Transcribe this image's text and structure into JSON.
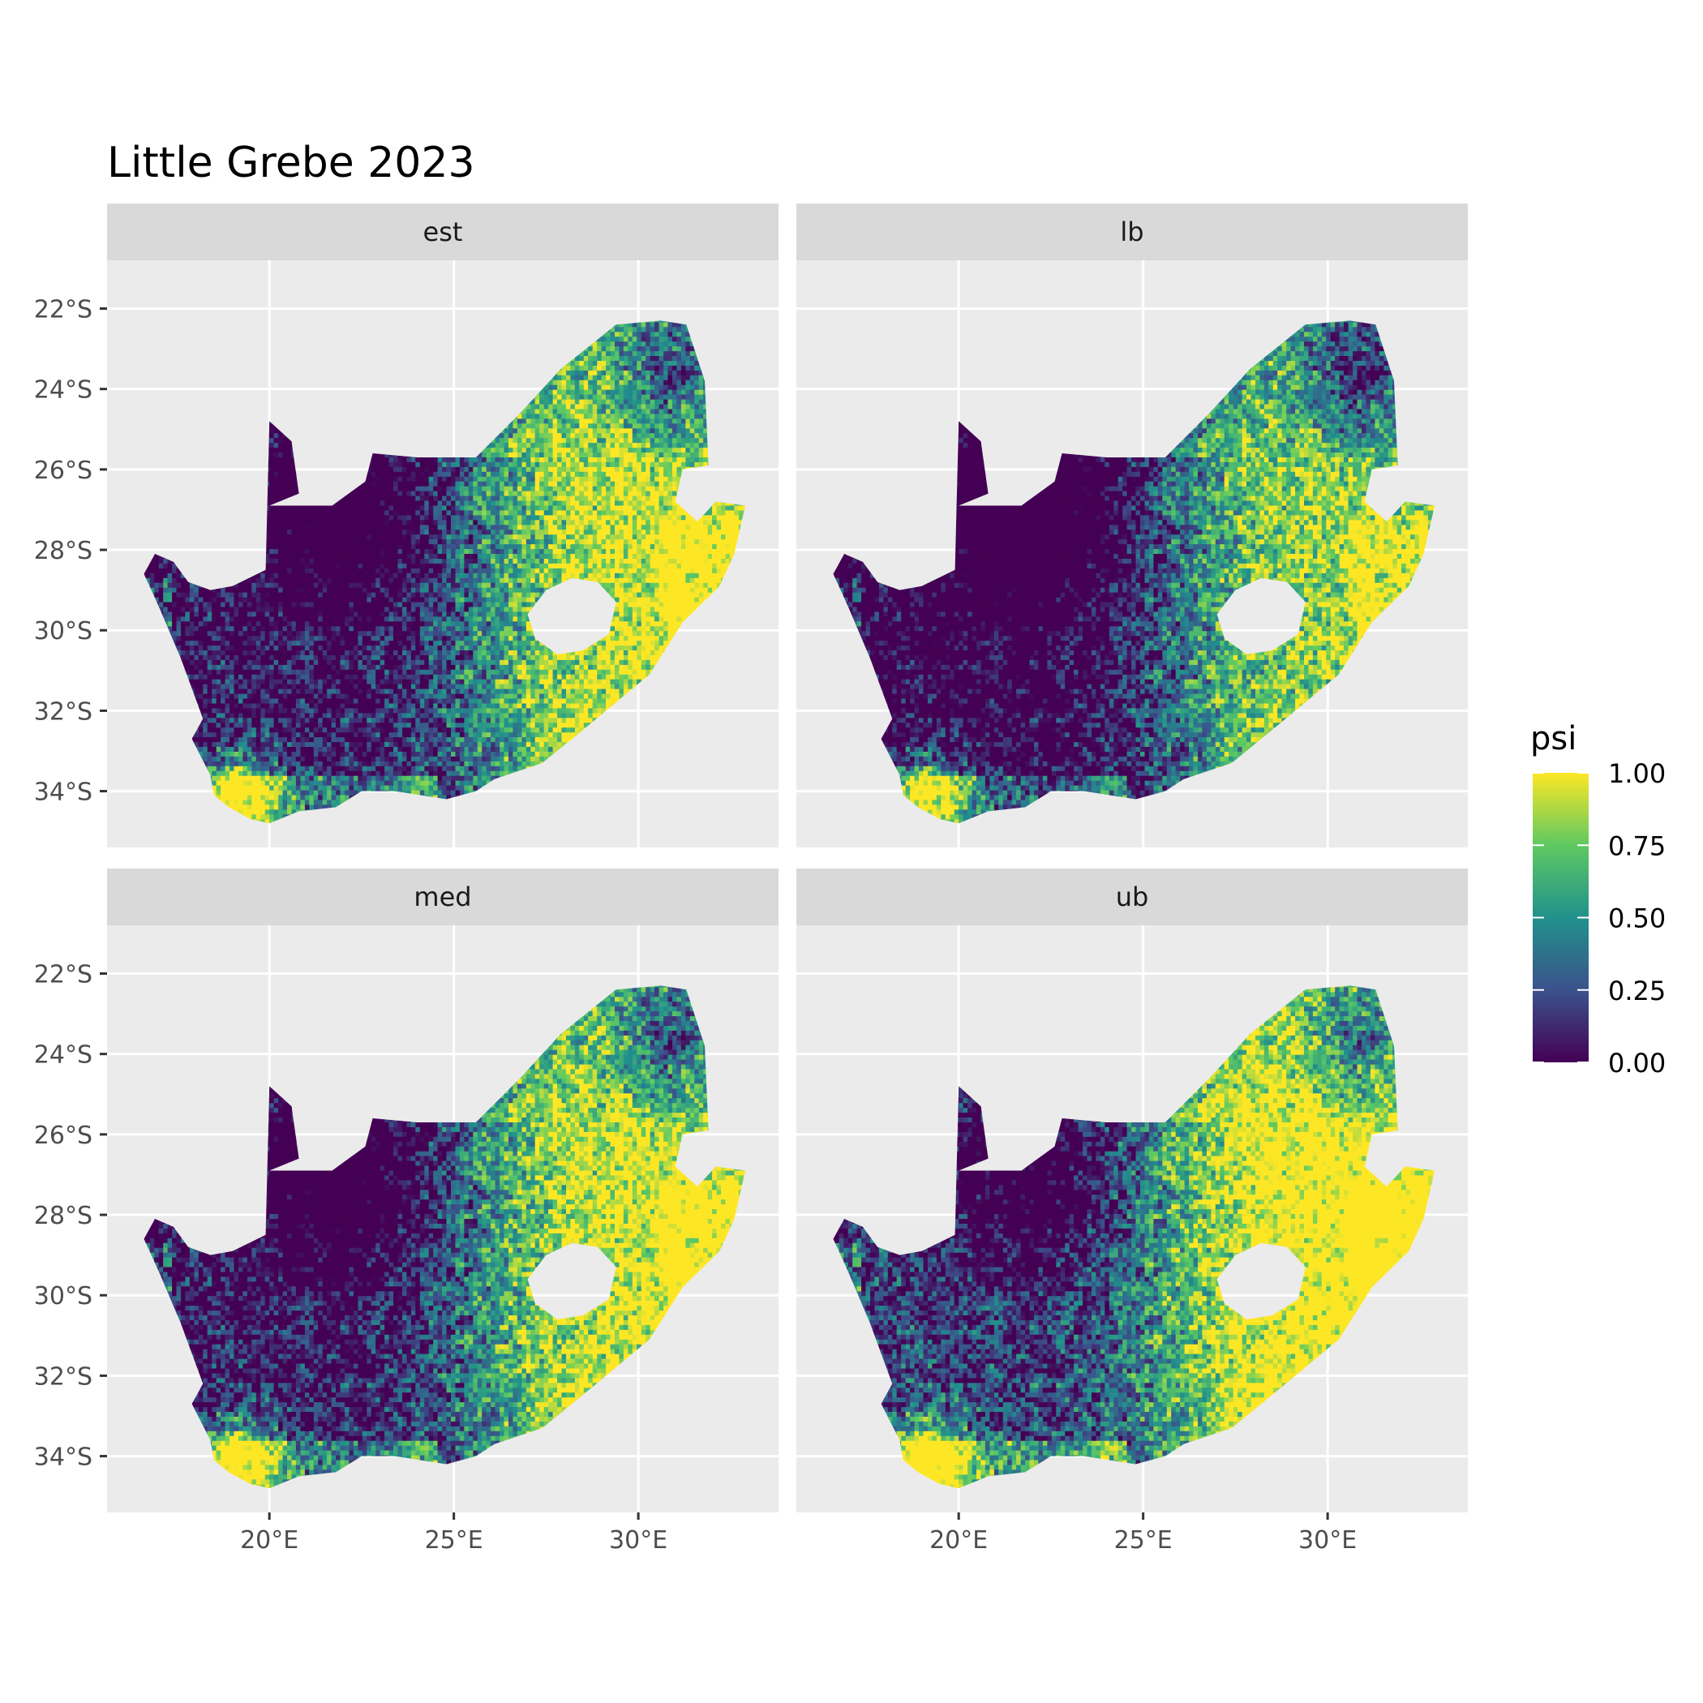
{
  "title": "Little Grebe 2023",
  "legend": {
    "title": "psi",
    "labels": [
      "1.00",
      "0.75",
      "0.50",
      "0.25",
      "0.00"
    ],
    "colors": [
      "#440154",
      "#3b528b",
      "#21918c",
      "#5ec962",
      "#fde725"
    ]
  },
  "chart_data": {
    "type": "heatmap",
    "title": "Little Grebe 2023",
    "fill_variable": "psi",
    "fill_range": [
      0,
      1
    ],
    "colormap": "viridis",
    "x_ticks": [
      "20°E",
      "25°E",
      "30°E"
    ],
    "y_ticks": [
      "22°S",
      "24°S",
      "26°S",
      "28°S",
      "30°S",
      "32°S",
      "34°S"
    ],
    "x_tick_values": [
      20,
      25,
      30
    ],
    "y_tick_values": [
      -22,
      -24,
      -26,
      -28,
      -30,
      -32,
      -34
    ],
    "xlim": [
      15.6,
      33.8
    ],
    "ylim": [
      -35.4,
      -20.8
    ],
    "panels": [
      {
        "label": "est",
        "level_shift": 0
      },
      {
        "label": "lb",
        "level_shift": -0.12
      },
      {
        "label": "med",
        "level_shift": 0.02
      },
      {
        "label": "ub",
        "level_shift": 0.15
      }
    ]
  },
  "colors": {
    "panel_background": "#ebebeb",
    "grid": "#ffffff",
    "strip_background": "#d9d9d9"
  }
}
